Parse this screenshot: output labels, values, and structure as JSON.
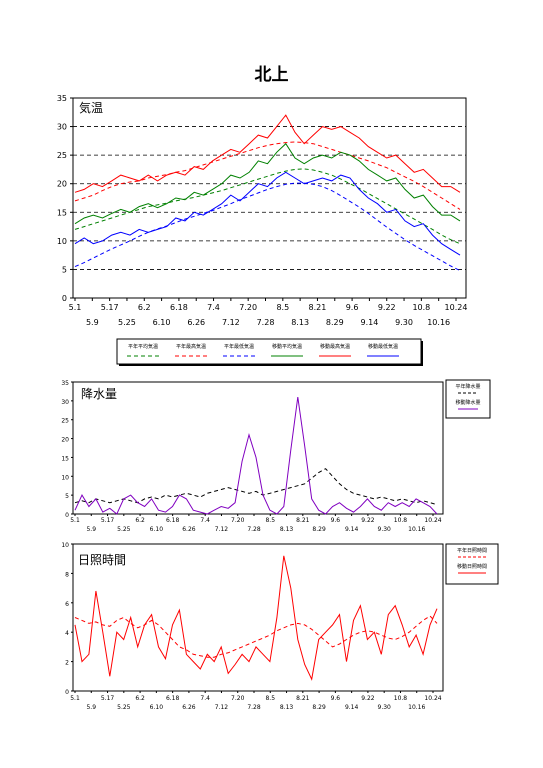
{
  "page": {
    "title": "北上"
  },
  "chart_data": [
    {
      "type": "line",
      "inner_label": "気温",
      "ylim": [
        0,
        35
      ],
      "y_ticks": [
        "0",
        "5",
        "10",
        "15",
        "20",
        "25",
        "30",
        "35"
      ],
      "x_ticks_top": [
        "5.1",
        "5.17",
        "6.2",
        "6.18",
        "7.4",
        "7.20",
        "8.5",
        "8.21",
        "9.6",
        "9.22",
        "10.8",
        "10.24"
      ],
      "x_ticks_bottom": [
        "5.9",
        "5.25",
        "6.10",
        "6.26",
        "7.12",
        "7.28",
        "8.13",
        "8.29",
        "9.14",
        "9.30",
        "10.16"
      ],
      "grid": "horizontal-dashed",
      "legend_position": "bottom",
      "series": [
        {
          "name": "平年平均気温",
          "style": "dashed",
          "color": "#008000",
          "values": [
            12,
            12.5,
            13,
            13.5,
            14,
            14.5,
            15,
            15.5,
            16,
            16.3,
            16.6,
            17,
            17.3,
            17.6,
            18,
            18.4,
            18.8,
            19.3,
            19.8,
            20.3,
            20.8,
            21.3,
            21.8,
            22.2,
            22.5,
            22.6,
            22.4,
            22,
            21.5,
            20.8,
            20,
            19.2,
            18.3,
            17.4,
            16.5,
            15.6,
            14.7,
            13.8,
            12.9,
            12,
            11,
            10.2,
            9.5
          ]
        },
        {
          "name": "平年最高気温",
          "style": "dashed",
          "color": "#ff0000",
          "values": [
            17,
            17.5,
            18,
            18.8,
            19.5,
            20,
            20.3,
            20.5,
            21,
            21.3,
            21.6,
            22,
            22.3,
            22.8,
            23.3,
            23.8,
            24.3,
            24.8,
            25.3,
            25.8,
            26.3,
            26.7,
            27,
            27.2,
            27.3,
            27.2,
            27,
            26.5,
            26,
            25.5,
            25,
            24.5,
            24,
            23.4,
            22.8,
            22,
            21.2,
            20.4,
            19.5,
            18.5,
            17.5,
            16.5,
            15.5
          ]
        },
        {
          "name": "平年最低気温",
          "style": "dashed",
          "color": "#0000ff",
          "values": [
            5.5,
            6.2,
            7,
            7.8,
            8.6,
            9.3,
            10,
            10.8,
            11.5,
            12.1,
            12.6,
            13.2,
            13.8,
            14.3,
            14.8,
            15.3,
            15.9,
            16.5,
            17.2,
            17.8,
            18.4,
            19,
            19.5,
            19.9,
            20.1,
            20.1,
            19.9,
            19.5,
            18.8,
            17.9,
            16.9,
            15.9,
            14.8,
            13.6,
            12.4,
            11.3,
            10.2,
            9.2,
            8.3,
            7.4,
            6.5,
            5.6,
            4.8
          ]
        },
        {
          "name": "移動平均気温",
          "style": "solid",
          "color": "#008000",
          "values": [
            13,
            14,
            14.5,
            14,
            14.8,
            15.5,
            15,
            16,
            16.5,
            15.8,
            16.5,
            17.5,
            17.2,
            18.5,
            18,
            19,
            20,
            21.5,
            21,
            22,
            24,
            23.5,
            25.5,
            27,
            24.5,
            23.5,
            24.5,
            25,
            24.5,
            25.5,
            25,
            24,
            22.5,
            21.5,
            20.5,
            21,
            19,
            17.5,
            18,
            16,
            14.5,
            14.5,
            13.5
          ]
        },
        {
          "name": "移動最高気温",
          "style": "solid",
          "color": "#ff0000",
          "values": [
            18.5,
            19,
            20,
            19.5,
            20.5,
            21.5,
            21,
            20.5,
            21.5,
            20.5,
            21.5,
            22,
            21.5,
            23,
            22.5,
            24,
            25,
            26,
            25.5,
            27,
            28.5,
            28,
            30,
            32,
            29,
            27,
            28.5,
            30,
            29.5,
            30,
            29,
            28,
            26.5,
            25.5,
            24.5,
            25,
            23.5,
            22,
            22.5,
            21,
            19.5,
            19.5,
            18.5
          ]
        },
        {
          "name": "移動最低気温",
          "style": "solid",
          "color": "#0000ff",
          "values": [
            9.5,
            10.5,
            9.5,
            10,
            11,
            11.5,
            11,
            12,
            11.5,
            12,
            12.5,
            14,
            13.5,
            15,
            14.5,
            15.5,
            16.5,
            18,
            17,
            18.5,
            20,
            19.5,
            21,
            22,
            21,
            20,
            20.5,
            21,
            20.5,
            21.5,
            21,
            19,
            17.5,
            16.5,
            15,
            15.5,
            13.5,
            12.5,
            13,
            11,
            9.5,
            8.5,
            7.5
          ]
        }
      ]
    },
    {
      "type": "line",
      "inner_label": "降水量",
      "ylim": [
        0,
        35
      ],
      "y_ticks": [
        "0",
        "5",
        "10",
        "15",
        "20",
        "25",
        "30",
        "35"
      ],
      "x_ticks_top": [
        "5.1",
        "5.17",
        "6.2",
        "6.18",
        "7.4",
        "7.20",
        "8.5",
        "8.21",
        "9.6",
        "9.22",
        "10.8",
        "10.24"
      ],
      "x_ticks_bottom": [
        "5.9",
        "5.25",
        "6.10",
        "6.26",
        "7.12",
        "7.28",
        "8.13",
        "8.29",
        "9.14",
        "9.30",
        "10.16"
      ],
      "legend_position": "right",
      "series": [
        {
          "name": "平年降水量",
          "style": "dashed",
          "color": "#000000",
          "values": [
            3,
            3.5,
            3,
            4,
            3.5,
            3,
            3.5,
            4,
            3.5,
            3,
            4,
            4.5,
            4,
            5,
            4.5,
            5,
            5.5,
            5,
            4.5,
            5.5,
            6,
            6.5,
            7,
            6.5,
            6,
            5.5,
            6,
            5,
            5.5,
            6,
            6.5,
            7,
            7.5,
            8,
            9.5,
            11,
            12,
            10,
            8,
            6.5,
            5.5,
            5,
            4.5,
            4,
            4.5,
            4,
            3.5,
            4,
            3.5,
            3,
            3.5,
            3,
            2.5
          ]
        },
        {
          "name": "移動降水量",
          "style": "solid",
          "color": "#8000c0",
          "values": [
            1,
            5,
            2,
            4,
            0.5,
            1.5,
            0,
            4,
            5,
            3,
            2,
            4,
            1,
            0.5,
            2,
            5,
            4,
            1,
            0.5,
            0,
            1,
            2,
            1.5,
            3,
            14,
            21,
            15,
            5,
            1,
            0,
            2,
            17,
            31,
            18,
            4,
            1,
            0,
            2,
            3,
            1.5,
            0.5,
            2,
            4,
            2,
            1,
            3,
            2,
            3,
            2,
            4,
            3,
            2,
            0
          ]
        }
      ]
    },
    {
      "type": "line",
      "inner_label": "日照時間",
      "ylim": [
        0,
        10
      ],
      "y_ticks": [
        "0",
        "2",
        "4",
        "6",
        "8",
        "10"
      ],
      "x_ticks_top": [
        "5.1",
        "5.17",
        "6.2",
        "6.18",
        "7.4",
        "7.20",
        "8.5",
        "8.21",
        "9.6",
        "9.22",
        "10.8",
        "10.24"
      ],
      "x_ticks_bottom": [
        "5.9",
        "5.25",
        "6.10",
        "6.26",
        "7.12",
        "7.28",
        "8.13",
        "8.29",
        "9.14",
        "9.30",
        "10.16"
      ],
      "legend_position": "right",
      "series": [
        {
          "name": "平年日照時間",
          "style": "dashed",
          "color": "#ff0000",
          "values": [
            5,
            4.8,
            4.6,
            4.7,
            4.5,
            4.4,
            4.8,
            5,
            4.6,
            4.3,
            4.5,
            4.8,
            4.5,
            4,
            3.5,
            3,
            2.8,
            2.5,
            2.4,
            2.3,
            2.3,
            2.5,
            2.6,
            2.8,
            3,
            3.2,
            3.4,
            3.6,
            3.8,
            4.1,
            4.3,
            4.5,
            4.6,
            4.5,
            4.2,
            3.8,
            3.4,
            3,
            3.2,
            3.5,
            3.8,
            4,
            4.1,
            4,
            3.8,
            3.6,
            3.5,
            3.7,
            4,
            4.4,
            4.8,
            5.1,
            4.6
          ]
        },
        {
          "name": "移動日照時間",
          "style": "solid",
          "color": "#ff0000",
          "values": [
            4.5,
            2,
            2.5,
            6.8,
            4,
            1,
            4,
            3.5,
            5,
            3,
            4.5,
            5.2,
            3,
            2.2,
            4.5,
            5.5,
            2.5,
            2,
            1.5,
            2.5,
            2,
            3,
            1.2,
            1.8,
            2.5,
            2,
            3,
            2.5,
            2,
            5,
            9.2,
            7,
            3.5,
            1.8,
            0.8,
            3.5,
            4,
            4.5,
            5.2,
            2,
            4.8,
            5.8,
            3.5,
            4,
            2.5,
            5.2,
            5.8,
            4.5,
            3,
            3.8,
            2.5,
            4.5,
            5.6
          ]
        }
      ]
    }
  ]
}
